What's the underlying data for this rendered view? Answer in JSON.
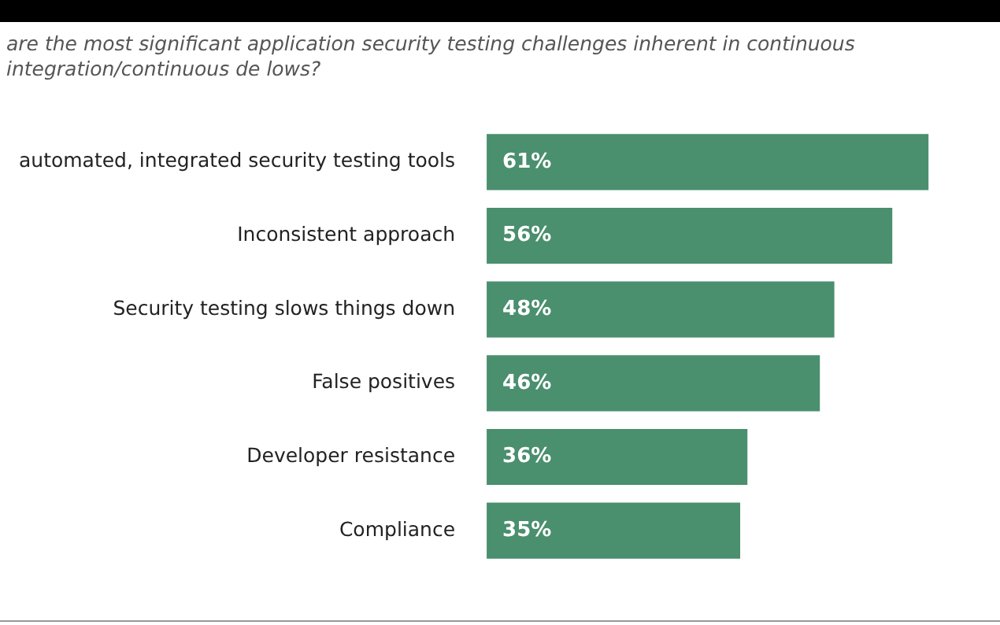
{
  "chart_data": {
    "type": "bar",
    "orientation": "horizontal",
    "title": "are the most significant application security testing challenges inherent in continuous integration/continuous de lows?",
    "categories": [
      "automated, integrated security testing tools",
      "Inconsistent approach",
      "Security testing slows things down",
      "False positives",
      "Developer resistance",
      "Compliance"
    ],
    "values": [
      61,
      56,
      48,
      46,
      36,
      35
    ],
    "value_labels": [
      "61%",
      "56%",
      "48%",
      "46%",
      "36%",
      "35%"
    ],
    "color": "#4a8f6e",
    "legend": false
  }
}
